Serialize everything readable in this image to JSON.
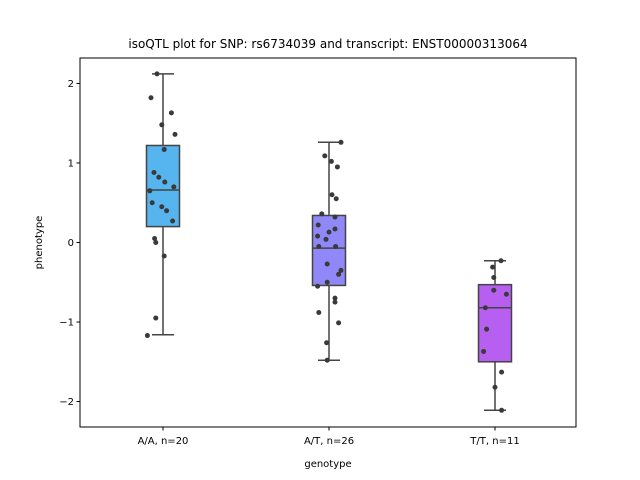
{
  "chart_data": {
    "type": "boxplot",
    "title": "isoQTL plot for SNP: rs6734039 and transcript: ENST00000313064",
    "xlabel": "genotype",
    "ylabel": "phenotype",
    "ylim": [
      -2.32,
      2.32
    ],
    "yticks": [
      -2,
      -1,
      0,
      1,
      2
    ],
    "yticklabels": [
      "−2",
      "−1",
      "0",
      "1",
      "2"
    ],
    "grid": false,
    "categories": [
      "A/A, n=20",
      "A/T, n=26",
      "T/T, n=11"
    ],
    "colors": [
      "#56b4ee",
      "#9088f9",
      "#b65ff0"
    ],
    "boxes": [
      {
        "q1": 0.2,
        "median": 0.66,
        "q3": 1.22,
        "whisker_low": -1.16,
        "whisker_high": 2.12
      },
      {
        "q1": -0.54,
        "median": -0.07,
        "q3": 0.34,
        "whisker_low": -1.48,
        "whisker_high": 1.26
      },
      {
        "q1": -1.5,
        "median": -0.82,
        "q3": -0.53,
        "whisker_low": -2.11,
        "whisker_high": -0.23
      }
    ],
    "points": [
      [
        {
          "j": -0.2,
          "y": 1.82
        },
        {
          "j": -0.1,
          "y": 2.12
        },
        {
          "j": 0.14,
          "y": 1.63
        },
        {
          "j": 0.2,
          "y": 1.36
        },
        {
          "j": -0.02,
          "y": 1.48
        },
        {
          "j": 0.02,
          "y": 1.17
        },
        {
          "j": -0.15,
          "y": 0.88
        },
        {
          "j": -0.07,
          "y": 0.82
        },
        {
          "j": 0.03,
          "y": 0.76
        },
        {
          "j": 0.18,
          "y": 0.7
        },
        {
          "j": -0.22,
          "y": 0.65
        },
        {
          "j": -0.18,
          "y": 0.5
        },
        {
          "j": -0.02,
          "y": 0.45
        },
        {
          "j": 0.06,
          "y": 0.4
        },
        {
          "j": 0.16,
          "y": 0.27
        },
        {
          "j": -0.14,
          "y": 0.05
        },
        {
          "j": -0.12,
          "y": 0.0
        },
        {
          "j": 0.02,
          "y": -0.17
        },
        {
          "j": -0.12,
          "y": -0.95
        },
        {
          "j": -0.26,
          "y": -1.17
        }
      ],
      [
        {
          "j": 0.2,
          "y": 1.26
        },
        {
          "j": -0.07,
          "y": 1.09
        },
        {
          "j": 0.04,
          "y": 1.02
        },
        {
          "j": 0.14,
          "y": 0.95
        },
        {
          "j": 0.05,
          "y": 0.6
        },
        {
          "j": 0.12,
          "y": 0.55
        },
        {
          "j": -0.12,
          "y": 0.36
        },
        {
          "j": 0.1,
          "y": 0.32
        },
        {
          "j": -0.18,
          "y": 0.22
        },
        {
          "j": 0.1,
          "y": 0.17
        },
        {
          "j": 0.0,
          "y": 0.13
        },
        {
          "j": -0.19,
          "y": 0.08
        },
        {
          "j": -0.05,
          "y": 0.04
        },
        {
          "j": -0.17,
          "y": -0.05
        },
        {
          "j": 0.11,
          "y": -0.05
        },
        {
          "j": -0.03,
          "y": -0.27
        },
        {
          "j": 0.2,
          "y": -0.35
        },
        {
          "j": 0.16,
          "y": -0.4
        },
        {
          "j": -0.03,
          "y": -0.5
        },
        {
          "j": -0.19,
          "y": -0.55
        },
        {
          "j": 0.1,
          "y": -0.7
        },
        {
          "j": 0.1,
          "y": -0.75
        },
        {
          "j": -0.17,
          "y": -0.88
        },
        {
          "j": 0.16,
          "y": -1.01
        },
        {
          "j": -0.04,
          "y": -1.26
        },
        {
          "j": -0.03,
          "y": -1.48
        }
      ],
      [
        {
          "j": 0.1,
          "y": -0.23
        },
        {
          "j": -0.04,
          "y": -0.31
        },
        {
          "j": -0.02,
          "y": -0.44
        },
        {
          "j": -0.02,
          "y": -0.6
        },
        {
          "j": 0.19,
          "y": -0.65
        },
        {
          "j": -0.16,
          "y": -0.82
        },
        {
          "j": -0.14,
          "y": -1.09
        },
        {
          "j": -0.19,
          "y": -1.37
        },
        {
          "j": 0.11,
          "y": -1.63
        },
        {
          "j": 0.0,
          "y": -1.82
        },
        {
          "j": 0.11,
          "y": -2.11
        }
      ]
    ]
  }
}
